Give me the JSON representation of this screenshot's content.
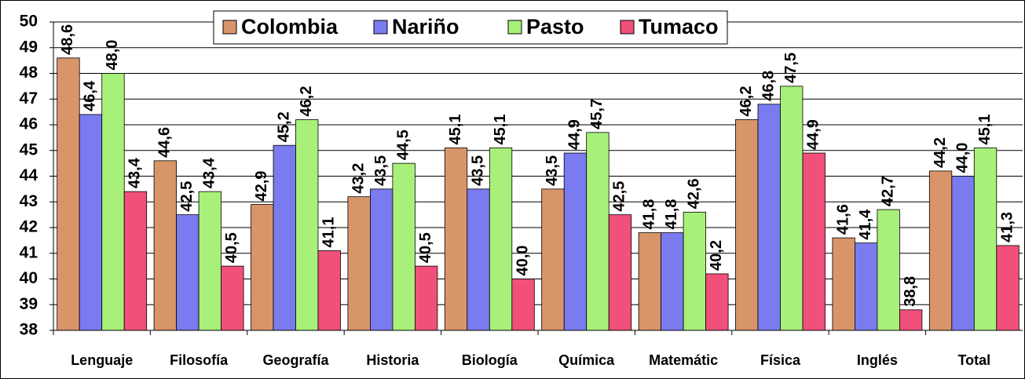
{
  "chart_data": {
    "type": "bar",
    "categories": [
      "Lenguaje",
      "Filosofía",
      "Geografía",
      "Historia",
      "Biología",
      "Química",
      "Matemátic",
      "Física",
      "Inglés",
      "Total"
    ],
    "series": [
      {
        "name": "Colombia",
        "color": "#d9956a",
        "values": [
          48.6,
          44.6,
          42.9,
          43.2,
          45.1,
          43.5,
          41.8,
          46.2,
          41.6,
          44.2
        ],
        "value_labels": [
          "48,6",
          "44,6",
          "42,9",
          "43,2",
          "45,1",
          "43,5",
          "41,8",
          "46,2",
          "41,6",
          "44,2"
        ]
      },
      {
        "name": "Nariño",
        "color": "#7b7bf0",
        "values": [
          46.4,
          42.5,
          45.2,
          43.5,
          43.5,
          44.9,
          41.8,
          46.8,
          41.4,
          44.0
        ],
        "value_labels": [
          "46,4",
          "42,5",
          "45,2",
          "43,5",
          "43,5",
          "44,9",
          "41,8",
          "46,8",
          "41,4",
          "44,0"
        ]
      },
      {
        "name": "Pasto",
        "color": "#a8f07a",
        "values": [
          48.0,
          43.4,
          46.2,
          44.5,
          45.1,
          45.7,
          42.6,
          47.5,
          42.7,
          45.1
        ],
        "value_labels": [
          "48,0",
          "43,4",
          "46,2",
          "44,5",
          "45,1",
          "45,7",
          "42,6",
          "47,5",
          "42,7",
          "45,1"
        ]
      },
      {
        "name": "Tumaco",
        "color": "#f0507a",
        "values": [
          43.4,
          40.5,
          41.1,
          40.5,
          40.0,
          42.5,
          40.2,
          44.9,
          38.8,
          41.3
        ],
        "value_labels": [
          "43,4",
          "40,5",
          "41,1",
          "40,5",
          "40,0",
          "42,5",
          "40,2",
          "44,9",
          "38,8",
          "41,3"
        ]
      }
    ],
    "ylim": [
      38,
      50
    ],
    "yticks": [
      38,
      39,
      40,
      41,
      42,
      43,
      44,
      45,
      46,
      47,
      48,
      49,
      50
    ],
    "grid": true,
    "legend": "top"
  }
}
